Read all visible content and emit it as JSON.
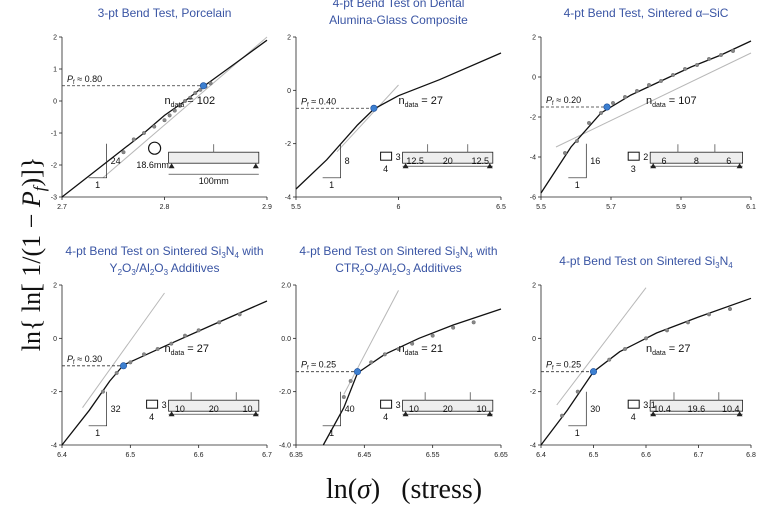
{
  "figure": {
    "ylabel": "ln{ ln[ 1/(1 − P_f)]}",
    "ylabel_parts": {
      "pre": "ln{ ln[ 1/(1",
      "minus": " − ",
      "p": "P",
      "f": "f",
      "post": ")]}"
    },
    "xlabel": "ln(σ)   (stress)",
    "xlabel_parts": {
      "ln": "ln(",
      "sigma": "σ",
      "close": ")",
      "gap": "   ",
      "stress": "(stress)"
    }
  },
  "chart_data": [
    {
      "type": "scatter",
      "title": [
        "3-pt Bend Test, Porcelain"
      ],
      "xlim": [
        2.7,
        2.9
      ],
      "ylim": [
        -3,
        2
      ],
      "xticks": [
        "2.7",
        "2.8",
        "2.9"
      ],
      "yticks": [
        "-3",
        "-2",
        "-1",
        "0",
        "1",
        "2"
      ],
      "pf_label": "P",
      "pf_sub": "f",
      "pf_value": "≈ 0.80",
      "pf_y": 0.476,
      "pf_x": 2.838,
      "ndata_label": "n",
      "ndata_sub": "data",
      "ndata_value": "= 102",
      "slope_rise": "24",
      "slope_run": "1",
      "specimen": [
        "18.6mm",
        "100mm"
      ],
      "fit": [
        [
          2.7,
          -3.0
        ],
        [
          2.74,
          -2.0
        ],
        [
          2.78,
          -1.0
        ],
        [
          2.8,
          -0.45
        ],
        [
          2.82,
          0.0
        ],
        [
          2.84,
          0.5
        ],
        [
          2.87,
          1.2
        ],
        [
          2.9,
          1.9
        ]
      ],
      "fit2": [
        [
          2.74,
          -2.4
        ],
        [
          2.9,
          2.0
        ]
      ],
      "points": [
        [
          2.76,
          -1.6
        ],
        [
          2.77,
          -1.2
        ],
        [
          2.78,
          -1.0
        ],
        [
          2.79,
          -0.8
        ],
        [
          2.8,
          -0.6
        ],
        [
          2.805,
          -0.45
        ],
        [
          2.81,
          -0.3
        ],
        [
          2.815,
          -0.15
        ],
        [
          2.82,
          0.0
        ],
        [
          2.825,
          0.1
        ],
        [
          2.83,
          0.25
        ],
        [
          2.835,
          0.35
        ],
        [
          2.84,
          0.45
        ],
        [
          2.845,
          0.55
        ]
      ]
    },
    {
      "type": "scatter",
      "title": [
        "4-pt Bend Test on Dental",
        "Alumina-Glass Composite"
      ],
      "xlim": [
        5.5,
        6.5
      ],
      "ylim": [
        -4,
        2
      ],
      "xticks": [
        "5.5",
        "6",
        "6.5"
      ],
      "yticks": [
        "-4",
        "-2",
        "0",
        "2"
      ],
      "pf_label": "P",
      "pf_sub": "f",
      "pf_value": "≈ 0.40",
      "pf_y": -0.672,
      "pf_x": 5.88,
      "ndata_label": "n",
      "ndata_sub": "data",
      "ndata_value": "= 27",
      "slope_rise": "8",
      "slope_run": "1",
      "specimen": [
        "4",
        "3",
        "12.5",
        "20",
        "12.5"
      ],
      "fit": [
        [
          5.5,
          -3.7
        ],
        [
          5.65,
          -2.6
        ],
        [
          5.8,
          -1.3
        ],
        [
          5.88,
          -0.7
        ],
        [
          6.0,
          -0.2
        ],
        [
          6.2,
          0.4
        ],
        [
          6.5,
          1.4
        ]
      ],
      "fit2": [
        [
          5.7,
          -2.3
        ],
        [
          6.0,
          0.2
        ]
      ],
      "points": [
        [
          5.88,
          -0.7
        ]
      ]
    },
    {
      "type": "scatter",
      "title": [
        "4-pt Bend Test, Sintered α–SiC"
      ],
      "xlim": [
        5.5,
        6.2
      ],
      "ylim": [
        -6,
        2
      ],
      "xticks": [
        "5.5",
        "5.7",
        "5.9",
        "6.1"
      ],
      "yticks": [
        "-6",
        "-4",
        "-2",
        "0",
        "2"
      ],
      "pf_label": "P",
      "pf_sub": "f",
      "pf_value": "≈ 0.20",
      "pf_y": -1.5,
      "pf_x": 5.72,
      "ndata_label": "n",
      "ndata_sub": "data",
      "ndata_value": "= 107",
      "slope_rise": "16",
      "slope_run": "1",
      "specimen": [
        "3",
        "2",
        "6",
        "8",
        "6"
      ],
      "fit": [
        [
          5.5,
          -5.8
        ],
        [
          5.6,
          -3.5
        ],
        [
          5.7,
          -1.8
        ],
        [
          5.8,
          -0.9
        ],
        [
          5.9,
          -0.2
        ],
        [
          6.0,
          0.5
        ],
        [
          6.1,
          1.1
        ],
        [
          6.2,
          1.8
        ]
      ],
      "fit2": [
        [
          5.55,
          -3.5
        ],
        [
          6.2,
          1.2
        ]
      ],
      "points": [
        [
          5.58,
          -3.8
        ],
        [
          5.62,
          -3.2
        ],
        [
          5.66,
          -2.3
        ],
        [
          5.7,
          -1.8
        ],
        [
          5.74,
          -1.3
        ],
        [
          5.78,
          -1.0
        ],
        [
          5.82,
          -0.7
        ],
        [
          5.86,
          -0.4
        ],
        [
          5.9,
          -0.2
        ],
        [
          5.94,
          0.1
        ],
        [
          5.98,
          0.4
        ],
        [
          6.02,
          0.6
        ],
        [
          6.06,
          0.9
        ],
        [
          6.1,
          1.1
        ],
        [
          6.14,
          1.3
        ]
      ]
    },
    {
      "type": "scatter",
      "title": [
        "4-pt Bend Test on Sintered Si3N4 with",
        "Y2O3/Al2O3 Additives"
      ],
      "xlim": [
        6.4,
        6.7
      ],
      "ylim": [
        -4,
        2
      ],
      "xticks": [
        "6.4",
        "6.5",
        "6.6",
        "6.7"
      ],
      "yticks": [
        "-4",
        "-2",
        "0",
        "2"
      ],
      "pf_label": "P",
      "pf_sub": "f",
      "pf_value": "≈ 0.30",
      "pf_y": -1.03,
      "pf_x": 6.49,
      "ndata_label": "n",
      "ndata_sub": "data",
      "ndata_value": "= 27",
      "slope_rise": "32",
      "slope_run": "1",
      "specimen": [
        "4",
        "3",
        "10",
        "20",
        "10"
      ],
      "fit": [
        [
          6.4,
          -4.0
        ],
        [
          6.44,
          -2.7
        ],
        [
          6.47,
          -1.6
        ],
        [
          6.49,
          -1.0
        ],
        [
          6.55,
          -0.3
        ],
        [
          6.62,
          0.5
        ],
        [
          6.7,
          1.4
        ]
      ],
      "fit2": [
        [
          6.43,
          -2.6
        ],
        [
          6.55,
          1.7
        ]
      ],
      "points": [
        [
          6.46,
          -2.0
        ],
        [
          6.48,
          -1.3
        ],
        [
          6.5,
          -0.9
        ],
        [
          6.52,
          -0.6
        ],
        [
          6.54,
          -0.4
        ],
        [
          6.56,
          -0.2
        ],
        [
          6.58,
          0.1
        ],
        [
          6.6,
          0.3
        ],
        [
          6.63,
          0.6
        ],
        [
          6.66,
          0.9
        ]
      ]
    },
    {
      "type": "scatter",
      "title": [
        "4-pt Bend Test on Sintered Si3N4 with",
        "CTR2O3/Al2O3 Additives"
      ],
      "xlim": [
        6.35,
        6.65
      ],
      "ylim": [
        -4,
        2
      ],
      "xticks": [
        "6.35",
        "6.45",
        "6.55",
        "6.65"
      ],
      "yticks": [
        "-4.0",
        "-2.0",
        "0.0",
        "2.0"
      ],
      "pf_label": "P",
      "pf_sub": "f",
      "pf_value": "≈ 0.25",
      "pf_y": -1.25,
      "pf_x": 6.44,
      "ndata_label": "n",
      "ndata_sub": "data",
      "ndata_value": "= 21",
      "slope_rise": "40",
      "slope_run": "1",
      "specimen": [
        "4",
        "3",
        "10",
        "20",
        "10"
      ],
      "fit": [
        [
          6.39,
          -4.0
        ],
        [
          6.42,
          -2.6
        ],
        [
          6.44,
          -1.3
        ],
        [
          6.48,
          -0.6
        ],
        [
          6.53,
          0.0
        ],
        [
          6.58,
          0.5
        ],
        [
          6.65,
          1.1
        ]
      ],
      "fit2": [
        [
          6.42,
          -2.1
        ],
        [
          6.5,
          1.8
        ]
      ],
      "points": [
        [
          6.42,
          -2.2
        ],
        [
          6.43,
          -1.6
        ],
        [
          6.44,
          -1.25
        ],
        [
          6.46,
          -0.9
        ],
        [
          6.48,
          -0.6
        ],
        [
          6.5,
          -0.4
        ],
        [
          6.52,
          -0.2
        ],
        [
          6.55,
          0.1
        ],
        [
          6.58,
          0.4
        ],
        [
          6.61,
          0.6
        ]
      ]
    },
    {
      "type": "scatter",
      "title": [
        "4-pt Bend Test on Sintered Si3N4"
      ],
      "xlim": [
        6.4,
        6.8
      ],
      "ylim": [
        -4,
        2
      ],
      "xticks": [
        "6.4",
        "6.5",
        "6.6",
        "6.7",
        "6.8"
      ],
      "yticks": [
        "-4",
        "-2",
        "0",
        "2"
      ],
      "pf_label": "P",
      "pf_sub": "f",
      "pf_value": "≈ 0.25",
      "pf_y": -1.25,
      "pf_x": 6.5,
      "ndata_label": "n",
      "ndata_sub": "data",
      "ndata_value": "= 27",
      "slope_rise": "30",
      "slope_run": "1",
      "specimen": [
        "4",
        "3.1",
        "10.4",
        "19.6",
        "10.4"
      ],
      "fit": [
        [
          6.4,
          -4.0
        ],
        [
          6.45,
          -2.7
        ],
        [
          6.5,
          -1.25
        ],
        [
          6.55,
          -0.5
        ],
        [
          6.62,
          0.2
        ],
        [
          6.7,
          0.8
        ],
        [
          6.8,
          1.5
        ]
      ],
      "fit2": [
        [
          6.43,
          -2.5
        ],
        [
          6.6,
          1.9
        ]
      ],
      "points": [
        [
          6.44,
          -2.9
        ],
        [
          6.47,
          -2.0
        ],
        [
          6.5,
          -1.25
        ],
        [
          6.53,
          -0.8
        ],
        [
          6.56,
          -0.4
        ],
        [
          6.6,
          0.0
        ],
        [
          6.64,
          0.3
        ],
        [
          6.68,
          0.6
        ],
        [
          6.72,
          0.9
        ],
        [
          6.76,
          1.1
        ]
      ]
    }
  ]
}
